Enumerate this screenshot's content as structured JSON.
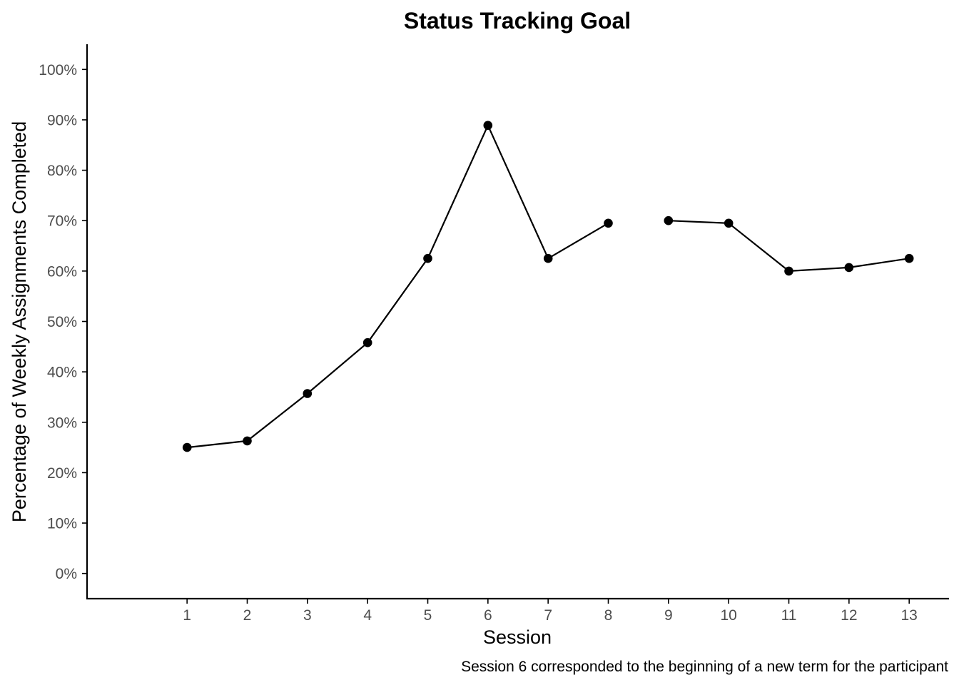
{
  "chart_data": {
    "type": "line",
    "title": "Status Tracking Goal",
    "xlabel": "Session",
    "ylabel": "Percentage of Weekly Assignments Completed",
    "caption": "Session 6 corresponded to the beginning of a new term for the participant",
    "x": [
      1,
      2,
      3,
      4,
      5,
      6,
      7,
      8,
      9,
      10,
      11,
      12,
      13
    ],
    "x_ticks": [
      "1",
      "2",
      "3",
      "4",
      "5",
      "6",
      "7",
      "8",
      "9",
      "10",
      "11",
      "12",
      "13"
    ],
    "y_ticks": [
      "0%",
      "10%",
      "20%",
      "30%",
      "40%",
      "50%",
      "60%",
      "70%",
      "80%",
      "90%",
      "100%"
    ],
    "xlim": [
      -0.65,
      13.65
    ],
    "ylim": [
      -5,
      105
    ],
    "grid": false,
    "legend": "none",
    "line_breaks_after_x": [
      8
    ],
    "series": [
      {
        "values": [
          25.0,
          26.3,
          35.7,
          45.8,
          62.5,
          88.9,
          62.5,
          69.5,
          70.0,
          69.5,
          60.0,
          60.7,
          62.5
        ],
        "color": "#000000"
      }
    ]
  }
}
